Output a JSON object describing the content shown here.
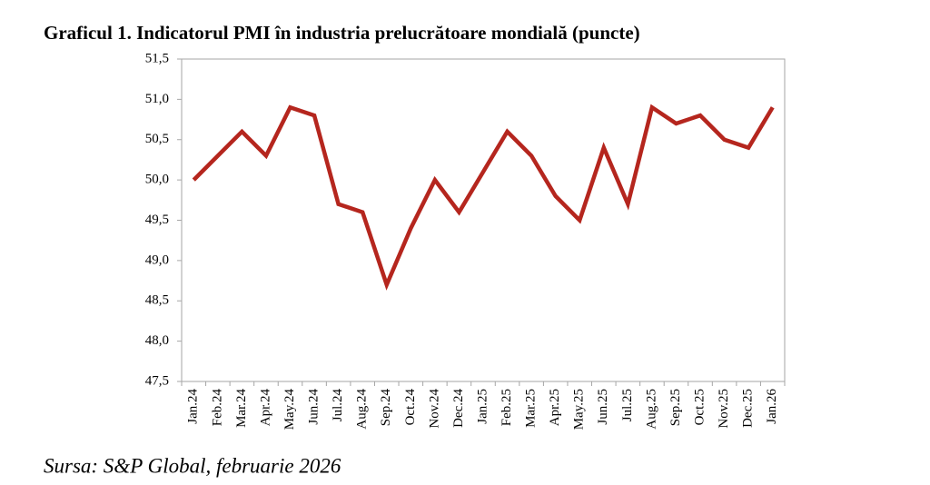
{
  "chart_data": {
    "type": "line",
    "title": "Graficul 1. Indicatorul PMI în industria prelucrătoare mondială (puncte)",
    "source": "Sursa: S&P Global, februarie 2026",
    "categories": [
      "Jan.24",
      "Feb.24",
      "Mar.24",
      "Apr.24",
      "May.24",
      "Jun.24",
      "Jul.24",
      "Aug.24",
      "Sep.24",
      "Oct.24",
      "Nov.24",
      "Dec.24",
      "Jan.25",
      "Feb.25",
      "Mar.25",
      "Apr.25",
      "May.25",
      "Jun.25",
      "Jul.25",
      "Aug.25",
      "Sep.25",
      "Oct.25",
      "Nov.25",
      "Dec.25",
      "Jan.26"
    ],
    "values": [
      50.0,
      50.3,
      50.6,
      50.3,
      50.9,
      50.8,
      49.7,
      49.6,
      48.7,
      49.4,
      50.0,
      49.6,
      50.1,
      50.6,
      50.3,
      49.8,
      49.5,
      50.4,
      49.7,
      50.9,
      50.7,
      50.8,
      50.5,
      50.4,
      50.9
    ],
    "color": "#b5261e",
    "ylim": [
      47.5,
      51.5
    ],
    "yticks": [
      {
        "value": 47.5,
        "label": "47,5"
      },
      {
        "value": 48.0,
        "label": "48,0"
      },
      {
        "value": 48.5,
        "label": "48,5"
      },
      {
        "value": 49.0,
        "label": "49,0"
      },
      {
        "value": 49.5,
        "label": "49,5"
      },
      {
        "value": 50.0,
        "label": "50,0"
      },
      {
        "value": 50.5,
        "label": "50,5"
      },
      {
        "value": 51.0,
        "label": "51,0"
      },
      {
        "value": 51.5,
        "label": "51,5"
      }
    ],
    "grid": false
  }
}
